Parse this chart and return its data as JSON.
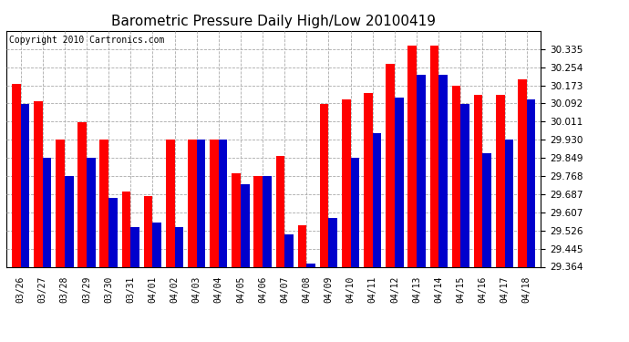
{
  "title": "Barometric Pressure Daily High/Low 20100419",
  "copyright": "Copyright 2010 Cartronics.com",
  "dates": [
    "03/26",
    "03/27",
    "03/28",
    "03/29",
    "03/30",
    "03/31",
    "04/01",
    "04/02",
    "04/03",
    "04/04",
    "04/05",
    "04/06",
    "04/07",
    "04/08",
    "04/09",
    "04/10",
    "04/11",
    "04/12",
    "04/13",
    "04/14",
    "04/15",
    "04/16",
    "04/17",
    "04/18"
  ],
  "highs": [
    30.18,
    30.1,
    29.93,
    30.01,
    29.93,
    29.7,
    29.68,
    29.93,
    29.93,
    29.93,
    29.78,
    29.77,
    29.86,
    29.55,
    30.09,
    30.11,
    30.14,
    30.27,
    30.35,
    30.35,
    30.17,
    30.13,
    30.13,
    30.2
  ],
  "lows": [
    30.09,
    29.85,
    29.77,
    29.85,
    29.67,
    29.54,
    29.56,
    29.54,
    29.93,
    29.93,
    29.73,
    29.77,
    29.51,
    29.38,
    29.58,
    29.85,
    29.96,
    30.12,
    30.22,
    30.22,
    30.09,
    29.87,
    29.93,
    30.11
  ],
  "ymin": 29.364,
  "ymax": 30.416,
  "yticks": [
    29.364,
    29.445,
    29.526,
    29.607,
    29.687,
    29.768,
    29.849,
    29.93,
    30.011,
    30.092,
    30.173,
    30.254,
    30.335
  ],
  "bar_width": 0.4,
  "high_color": "#ff0000",
  "low_color": "#0000cc",
  "bg_color": "#ffffff",
  "grid_color": "#aaaaaa",
  "title_fontsize": 11,
  "copyright_fontsize": 7
}
